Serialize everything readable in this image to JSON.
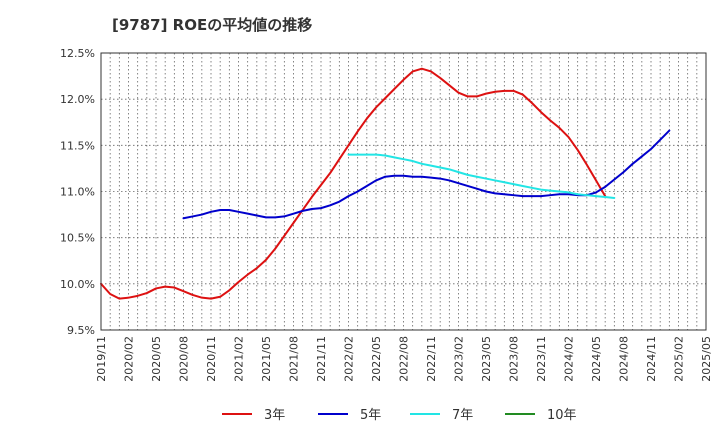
{
  "chart_data": {
    "type": "line",
    "title": "[9787]  ROEの平均値の推移",
    "xlabel": "",
    "ylabel": "",
    "ylim": [
      9.5,
      12.5
    ],
    "yticks": [
      9.5,
      10.0,
      10.5,
      11.0,
      11.5,
      12.0,
      12.5
    ],
    "ytick_labels": [
      "9.5%",
      "10.0%",
      "10.5%",
      "11.0%",
      "11.5%",
      "12.0%",
      "12.5%"
    ],
    "x_labels": [
      "2019/11",
      "2020/02",
      "2020/05",
      "2020/08",
      "2020/11",
      "2021/02",
      "2021/05",
      "2021/08",
      "2021/11",
      "2022/02",
      "2022/05",
      "2022/08",
      "2022/11",
      "2023/02",
      "2023/05",
      "2023/08",
      "2023/11",
      "2024/02",
      "2024/05",
      "2024/08",
      "2024/11",
      "2025/02",
      "2025/05"
    ],
    "grid": true,
    "legend_position": "bottom",
    "series": [
      {
        "name": "3年",
        "color": "#dd1111",
        "start_index": 0,
        "values": [
          10.0,
          9.89,
          9.84,
          9.85,
          9.87,
          9.9,
          9.95,
          9.97,
          9.96,
          9.92,
          9.88,
          9.85,
          9.84,
          9.86,
          9.93,
          10.02,
          10.1,
          10.17,
          10.26,
          10.38,
          10.52,
          10.66,
          10.8,
          10.94,
          11.07,
          11.2,
          11.35,
          11.5,
          11.65,
          11.79,
          11.91,
          12.01,
          12.11,
          12.21,
          12.3,
          12.33,
          12.3,
          12.23,
          12.15,
          12.07,
          12.03,
          12.03,
          12.06,
          12.08,
          12.09,
          12.09,
          12.05,
          11.96,
          11.86,
          11.77,
          11.69,
          11.59,
          11.45,
          11.29,
          11.12,
          10.95
        ]
      },
      {
        "name": "5年",
        "color": "#0000cc",
        "start_index": 9,
        "values": [
          10.71,
          10.73,
          10.75,
          10.78,
          10.8,
          10.8,
          10.78,
          10.76,
          10.74,
          10.72,
          10.72,
          10.73,
          10.76,
          10.79,
          10.81,
          10.82,
          10.85,
          10.89,
          10.95,
          11.0,
          11.06,
          11.12,
          11.16,
          11.17,
          11.17,
          11.16,
          11.16,
          11.15,
          11.14,
          11.12,
          11.09,
          11.06,
          11.03,
          11.0,
          10.98,
          10.97,
          10.96,
          10.95,
          10.95,
          10.95,
          10.96,
          10.97,
          10.97,
          10.96,
          10.96,
          10.99,
          11.05,
          11.13,
          11.21,
          11.3,
          11.38,
          11.46,
          11.56,
          11.66
        ]
      },
      {
        "name": "7年",
        "color": "#22e5e5",
        "start_index": 27,
        "values": [
          11.4,
          11.4,
          11.4,
          11.4,
          11.39,
          11.37,
          11.35,
          11.33,
          11.3,
          11.28,
          11.26,
          11.24,
          11.21,
          11.18,
          11.16,
          11.14,
          11.12,
          11.1,
          11.08,
          11.06,
          11.04,
          11.02,
          11.01,
          11.0,
          10.99,
          10.97,
          10.96,
          10.95,
          10.94,
          10.93
        ]
      },
      {
        "name": "10年",
        "color": "#228b22",
        "start_index": 0,
        "values": []
      }
    ]
  }
}
